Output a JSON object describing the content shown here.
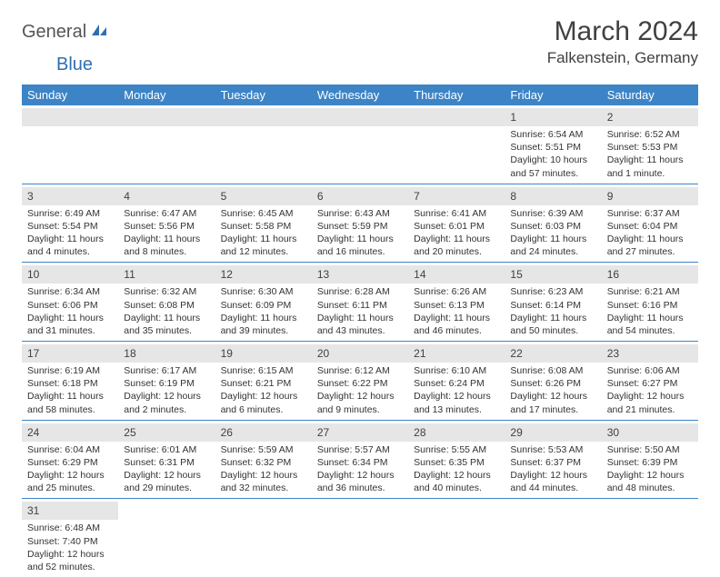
{
  "brand": {
    "part1": "General",
    "part2": "Blue"
  },
  "title": "March 2024",
  "location": "Falkenstein, Germany",
  "colors": {
    "header_bg": "#3d84c6",
    "header_text": "#ffffff",
    "daynum_bg": "#e6e6e6",
    "border": "#3d84c6",
    "text": "#333333",
    "title_text": "#404040"
  },
  "typography": {
    "title_fontsize": 30,
    "location_fontsize": 17,
    "dayhead_fontsize": 13,
    "daynum_fontsize": 12,
    "body_fontsize": 10.5
  },
  "day_labels": [
    "Sunday",
    "Monday",
    "Tuesday",
    "Wednesday",
    "Thursday",
    "Friday",
    "Saturday"
  ],
  "weeks": [
    [
      {
        "n": "",
        "sr": "",
        "ss": "",
        "dl": ""
      },
      {
        "n": "",
        "sr": "",
        "ss": "",
        "dl": ""
      },
      {
        "n": "",
        "sr": "",
        "ss": "",
        "dl": ""
      },
      {
        "n": "",
        "sr": "",
        "ss": "",
        "dl": ""
      },
      {
        "n": "",
        "sr": "",
        "ss": "",
        "dl": ""
      },
      {
        "n": "1",
        "sr": "Sunrise: 6:54 AM",
        "ss": "Sunset: 5:51 PM",
        "dl": "Daylight: 10 hours and 57 minutes."
      },
      {
        "n": "2",
        "sr": "Sunrise: 6:52 AM",
        "ss": "Sunset: 5:53 PM",
        "dl": "Daylight: 11 hours and 1 minute."
      }
    ],
    [
      {
        "n": "3",
        "sr": "Sunrise: 6:49 AM",
        "ss": "Sunset: 5:54 PM",
        "dl": "Daylight: 11 hours and 4 minutes."
      },
      {
        "n": "4",
        "sr": "Sunrise: 6:47 AM",
        "ss": "Sunset: 5:56 PM",
        "dl": "Daylight: 11 hours and 8 minutes."
      },
      {
        "n": "5",
        "sr": "Sunrise: 6:45 AM",
        "ss": "Sunset: 5:58 PM",
        "dl": "Daylight: 11 hours and 12 minutes."
      },
      {
        "n": "6",
        "sr": "Sunrise: 6:43 AM",
        "ss": "Sunset: 5:59 PM",
        "dl": "Daylight: 11 hours and 16 minutes."
      },
      {
        "n": "7",
        "sr": "Sunrise: 6:41 AM",
        "ss": "Sunset: 6:01 PM",
        "dl": "Daylight: 11 hours and 20 minutes."
      },
      {
        "n": "8",
        "sr": "Sunrise: 6:39 AM",
        "ss": "Sunset: 6:03 PM",
        "dl": "Daylight: 11 hours and 24 minutes."
      },
      {
        "n": "9",
        "sr": "Sunrise: 6:37 AM",
        "ss": "Sunset: 6:04 PM",
        "dl": "Daylight: 11 hours and 27 minutes."
      }
    ],
    [
      {
        "n": "10",
        "sr": "Sunrise: 6:34 AM",
        "ss": "Sunset: 6:06 PM",
        "dl": "Daylight: 11 hours and 31 minutes."
      },
      {
        "n": "11",
        "sr": "Sunrise: 6:32 AM",
        "ss": "Sunset: 6:08 PM",
        "dl": "Daylight: 11 hours and 35 minutes."
      },
      {
        "n": "12",
        "sr": "Sunrise: 6:30 AM",
        "ss": "Sunset: 6:09 PM",
        "dl": "Daylight: 11 hours and 39 minutes."
      },
      {
        "n": "13",
        "sr": "Sunrise: 6:28 AM",
        "ss": "Sunset: 6:11 PM",
        "dl": "Daylight: 11 hours and 43 minutes."
      },
      {
        "n": "14",
        "sr": "Sunrise: 6:26 AM",
        "ss": "Sunset: 6:13 PM",
        "dl": "Daylight: 11 hours and 46 minutes."
      },
      {
        "n": "15",
        "sr": "Sunrise: 6:23 AM",
        "ss": "Sunset: 6:14 PM",
        "dl": "Daylight: 11 hours and 50 minutes."
      },
      {
        "n": "16",
        "sr": "Sunrise: 6:21 AM",
        "ss": "Sunset: 6:16 PM",
        "dl": "Daylight: 11 hours and 54 minutes."
      }
    ],
    [
      {
        "n": "17",
        "sr": "Sunrise: 6:19 AM",
        "ss": "Sunset: 6:18 PM",
        "dl": "Daylight: 11 hours and 58 minutes."
      },
      {
        "n": "18",
        "sr": "Sunrise: 6:17 AM",
        "ss": "Sunset: 6:19 PM",
        "dl": "Daylight: 12 hours and 2 minutes."
      },
      {
        "n": "19",
        "sr": "Sunrise: 6:15 AM",
        "ss": "Sunset: 6:21 PM",
        "dl": "Daylight: 12 hours and 6 minutes."
      },
      {
        "n": "20",
        "sr": "Sunrise: 6:12 AM",
        "ss": "Sunset: 6:22 PM",
        "dl": "Daylight: 12 hours and 9 minutes."
      },
      {
        "n": "21",
        "sr": "Sunrise: 6:10 AM",
        "ss": "Sunset: 6:24 PM",
        "dl": "Daylight: 12 hours and 13 minutes."
      },
      {
        "n": "22",
        "sr": "Sunrise: 6:08 AM",
        "ss": "Sunset: 6:26 PM",
        "dl": "Daylight: 12 hours and 17 minutes."
      },
      {
        "n": "23",
        "sr": "Sunrise: 6:06 AM",
        "ss": "Sunset: 6:27 PM",
        "dl": "Daylight: 12 hours and 21 minutes."
      }
    ],
    [
      {
        "n": "24",
        "sr": "Sunrise: 6:04 AM",
        "ss": "Sunset: 6:29 PM",
        "dl": "Daylight: 12 hours and 25 minutes."
      },
      {
        "n": "25",
        "sr": "Sunrise: 6:01 AM",
        "ss": "Sunset: 6:31 PM",
        "dl": "Daylight: 12 hours and 29 minutes."
      },
      {
        "n": "26",
        "sr": "Sunrise: 5:59 AM",
        "ss": "Sunset: 6:32 PM",
        "dl": "Daylight: 12 hours and 32 minutes."
      },
      {
        "n": "27",
        "sr": "Sunrise: 5:57 AM",
        "ss": "Sunset: 6:34 PM",
        "dl": "Daylight: 12 hours and 36 minutes."
      },
      {
        "n": "28",
        "sr": "Sunrise: 5:55 AM",
        "ss": "Sunset: 6:35 PM",
        "dl": "Daylight: 12 hours and 40 minutes."
      },
      {
        "n": "29",
        "sr": "Sunrise: 5:53 AM",
        "ss": "Sunset: 6:37 PM",
        "dl": "Daylight: 12 hours and 44 minutes."
      },
      {
        "n": "30",
        "sr": "Sunrise: 5:50 AM",
        "ss": "Sunset: 6:39 PM",
        "dl": "Daylight: 12 hours and 48 minutes."
      }
    ],
    [
      {
        "n": "31",
        "sr": "Sunrise: 6:48 AM",
        "ss": "Sunset: 7:40 PM",
        "dl": "Daylight: 12 hours and 52 minutes."
      },
      {
        "n": "",
        "sr": "",
        "ss": "",
        "dl": ""
      },
      {
        "n": "",
        "sr": "",
        "ss": "",
        "dl": ""
      },
      {
        "n": "",
        "sr": "",
        "ss": "",
        "dl": ""
      },
      {
        "n": "",
        "sr": "",
        "ss": "",
        "dl": ""
      },
      {
        "n": "",
        "sr": "",
        "ss": "",
        "dl": ""
      },
      {
        "n": "",
        "sr": "",
        "ss": "",
        "dl": ""
      }
    ]
  ]
}
